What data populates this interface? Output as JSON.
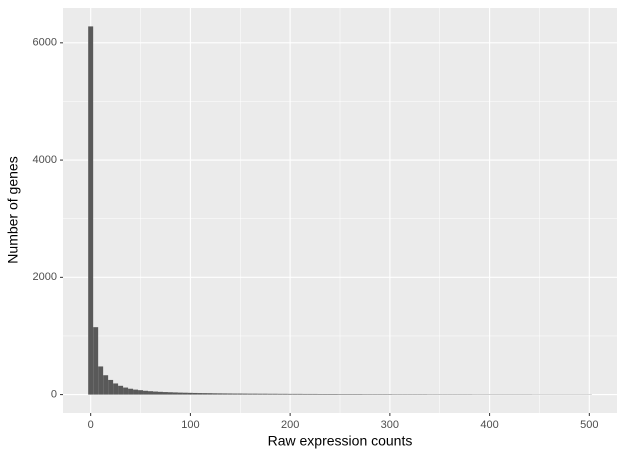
{
  "chart_data": {
    "type": "histogram",
    "x_label": "Raw expression counts",
    "y_label": "Number of genes",
    "bins": [
      -2.5,
      2.5,
      7.5,
      12.5,
      17.5,
      22.5,
      27.5,
      32.5,
      37.5,
      42.5,
      47.5,
      52.5,
      57.5,
      62.5,
      67.5,
      72.5,
      77.5,
      82.5,
      87.5,
      92.5,
      97.5,
      102.5,
      107.5,
      112.5,
      117.5,
      122.5,
      127.5,
      132.5,
      137.5,
      142.5,
      147.5,
      152.5,
      157.5,
      162.5,
      167.5,
      172.5,
      177.5,
      182.5,
      187.5,
      192.5,
      197.5,
      202.5,
      207.5,
      212.5,
      217.5,
      222.5,
      227.5,
      232.5,
      237.5,
      242.5,
      247.5,
      252.5,
      257.5,
      262.5,
      267.5,
      272.5,
      277.5,
      282.5,
      287.5,
      292.5,
      297.5,
      302.5,
      307.5,
      312.5,
      317.5,
      322.5,
      327.5,
      332.5,
      337.5,
      342.5,
      347.5,
      352.5,
      357.5,
      362.5,
      367.5,
      372.5,
      377.5,
      382.5,
      387.5,
      392.5,
      397.5,
      402.5,
      407.5,
      412.5,
      417.5,
      422.5,
      427.5,
      432.5,
      437.5,
      442.5,
      447.5,
      452.5,
      457.5,
      462.5,
      467.5,
      472.5,
      477.5,
      482.5,
      487.5,
      492.5,
      497.5,
      502.5
    ],
    "values": [
      6280,
      1150,
      480,
      330,
      250,
      190,
      150,
      120,
      100,
      85,
      75,
      65,
      58,
      52,
      47,
      43,
      40,
      37,
      34,
      32,
      30,
      28,
      26,
      25,
      24,
      22,
      21,
      20,
      19,
      18,
      18,
      17,
      16,
      16,
      15,
      15,
      14,
      14,
      13,
      13,
      12,
      12,
      12,
      11,
      11,
      11,
      10,
      10,
      10,
      10,
      9,
      9,
      9,
      9,
      9,
      8,
      8,
      8,
      8,
      8,
      8,
      7,
      7,
      7,
      7,
      7,
      7,
      7,
      6,
      6,
      6,
      6,
      6,
      6,
      6,
      6,
      6,
      5,
      5,
      5,
      5,
      5,
      5,
      5,
      5,
      5,
      5,
      5,
      5,
      4,
      4,
      4,
      4,
      4,
      4,
      4,
      4,
      4,
      4,
      4,
      4
    ],
    "color": "#595959",
    "xlim": [
      -27.75,
      527.75
    ],
    "xticks": [
      0,
      100,
      200,
      300,
      400,
      500
    ],
    "ylim": [
      -314,
      6594
    ],
    "yticks": [
      0,
      2000,
      4000,
      6000
    ],
    "grid": true
  }
}
